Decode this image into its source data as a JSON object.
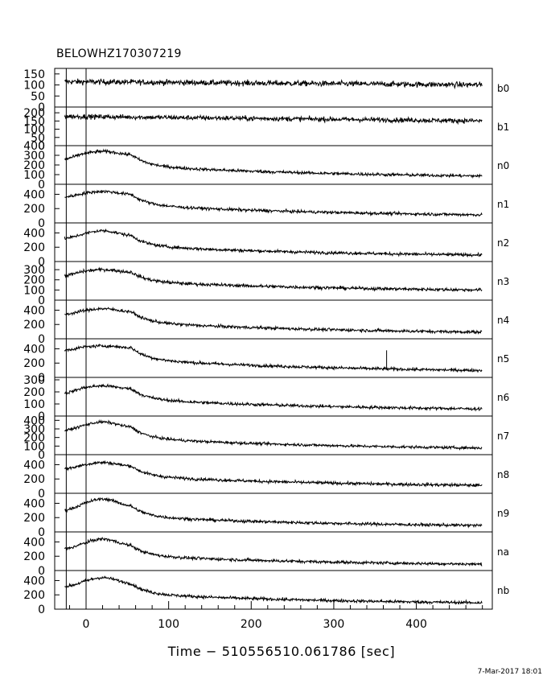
{
  "title": "BELOWHZ170307219",
  "timestamp": "7-Mar-2017 18:01",
  "chart_data": {
    "type": "line",
    "title": "BELOWHZ170307219",
    "xlabel": "Time − 510556510.061786 [sec]",
    "xlim": [
      -38,
      492
    ],
    "xticks": [
      0,
      100,
      200,
      300,
      400
    ],
    "grid": false,
    "legend": "none",
    "trigger_time": 0,
    "pre_trigger_marker": -24,
    "panels": [
      {
        "name": "b0",
        "ylim": [
          0,
          175
        ],
        "yticks": [
          0,
          50,
          100,
          150
        ],
        "level_start": 115,
        "level_end": 100,
        "noise": 12
      },
      {
        "name": "b1",
        "ylim": [
          0,
          235
        ],
        "yticks": [
          0,
          50,
          100,
          150,
          200
        ],
        "level_start": 178,
        "level_end": 150,
        "noise": 14
      },
      {
        "name": "n0",
        "ylim": [
          0,
          400
        ],
        "yticks": [
          0,
          100,
          200,
          300,
          400
        ],
        "base": [
          260,
          300
        ],
        "peak": 340,
        "tail": 60,
        "noise": 15
      },
      {
        "name": "n1",
        "ylim": [
          0,
          540
        ],
        "yticks": [
          0,
          200,
          400
        ],
        "base": [
          360,
          390
        ],
        "peak": 440,
        "tail": 80,
        "noise": 20
      },
      {
        "name": "n2",
        "ylim": [
          0,
          540
        ],
        "yticks": [
          0,
          200,
          400
        ],
        "base": [
          320,
          350
        ],
        "peak": 430,
        "tail": 60,
        "noise": 20
      },
      {
        "name": "n3",
        "ylim": [
          0,
          380
        ],
        "yticks": [
          0,
          100,
          200,
          300
        ],
        "base": [
          240,
          270
        ],
        "peak": 300,
        "tail": 80,
        "noise": 15
      },
      {
        "name": "n4",
        "ylim": [
          0,
          540
        ],
        "yticks": [
          0,
          200,
          400
        ],
        "base": [
          340,
          370
        ],
        "peak": 420,
        "tail": 60,
        "noise": 20
      },
      {
        "name": "n5",
        "ylim": [
          0,
          540
        ],
        "yticks": [
          0,
          200,
          400
        ],
        "base": [
          380,
          410
        ],
        "peak": 440,
        "tail": 60,
        "noise": 20,
        "spike": {
          "x": 364,
          "y": 260
        }
      },
      {
        "name": "n6",
        "ylim": [
          0,
          320
        ],
        "yticks": [
          0,
          100,
          200,
          300
        ],
        "base": [
          190,
          220
        ],
        "peak": 250,
        "tail": 40,
        "noise": 12
      },
      {
        "name": "n7",
        "ylim": [
          0,
          450
        ],
        "yticks": [
          0,
          100,
          200,
          300,
          400
        ],
        "base": [
          280,
          310
        ],
        "peak": 380,
        "tail": 50,
        "noise": 15
      },
      {
        "name": "n8",
        "ylim": [
          0,
          540
        ],
        "yticks": [
          0,
          200,
          400
        ],
        "base": [
          340,
          370
        ],
        "peak": 430,
        "tail": 80,
        "noise": 20
      },
      {
        "name": "n9",
        "ylim": [
          0,
          540
        ],
        "yticks": [
          0,
          200,
          400
        ],
        "base": [
          300,
          340
        ],
        "peak": 460,
        "tail": 60,
        "noise": 20
      },
      {
        "name": "na",
        "ylim": [
          0,
          540
        ],
        "yticks": [
          0,
          200,
          400
        ],
        "base": [
          300,
          330
        ],
        "peak": 440,
        "tail": 60,
        "noise": 20
      },
      {
        "name": "nb",
        "ylim": [
          0,
          540
        ],
        "yticks": [
          0,
          200,
          400
        ],
        "base": [
          310,
          340
        ],
        "peak": 440,
        "tail": 60,
        "noise": 20
      }
    ]
  }
}
